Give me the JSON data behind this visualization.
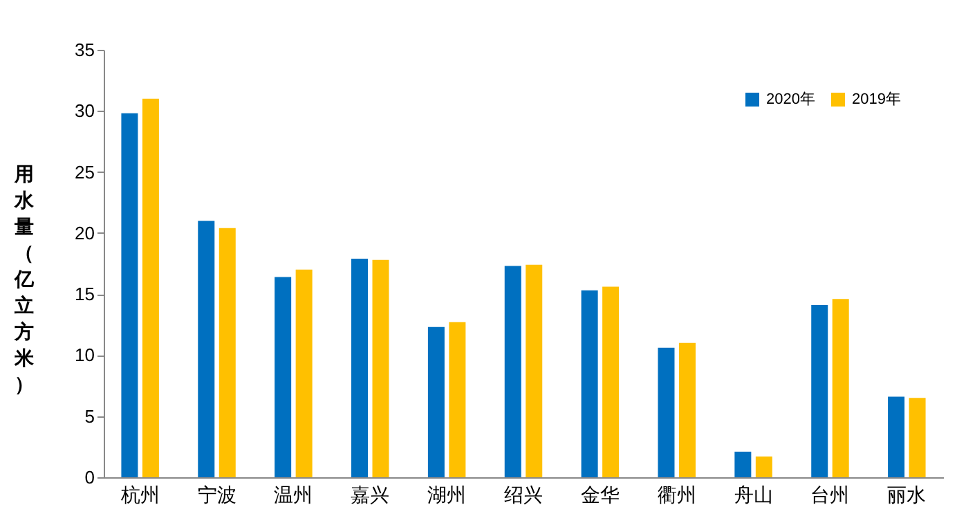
{
  "chart_data": {
    "type": "bar",
    "ylabel": "用水量（亿立方米）",
    "categories": [
      "杭州",
      "宁波",
      "温州",
      "嘉兴",
      "湖州",
      "绍兴",
      "金华",
      "衢州",
      "舟山",
      "台州",
      "丽水"
    ],
    "series": [
      {
        "name": "2020年",
        "color": "#0070c0",
        "values": [
          29.8,
          21.0,
          16.4,
          17.9,
          12.3,
          17.3,
          15.3,
          10.6,
          2.1,
          14.1,
          6.6
        ]
      },
      {
        "name": "2019年",
        "color": "#ffc000",
        "values": [
          31.0,
          20.4,
          17.0,
          17.8,
          12.7,
          17.4,
          15.6,
          11.0,
          1.7,
          14.6,
          6.5
        ]
      }
    ],
    "ylim": [
      0,
      35
    ],
    "yticks": [
      0,
      5,
      10,
      15,
      20,
      25,
      30,
      35
    ],
    "grid": false,
    "legend": "top right"
  }
}
